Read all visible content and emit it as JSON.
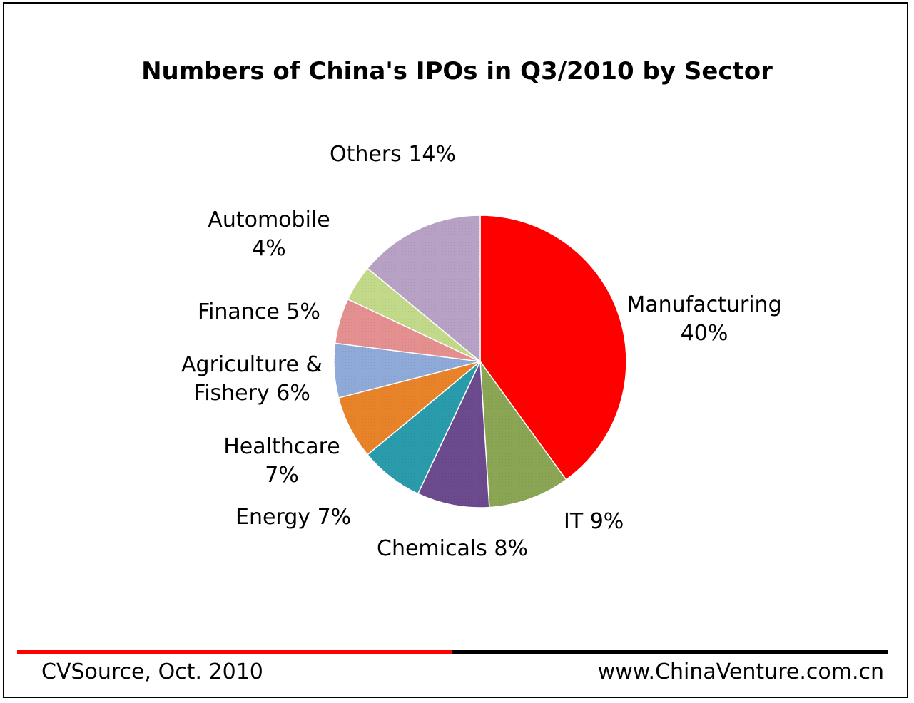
{
  "chart_data": {
    "type": "pie",
    "title": "Numbers of China's IPOs in Q3/2010 by Sector",
    "slices": [
      {
        "name": "Manufacturing",
        "value": 40,
        "label": "40%",
        "color": "#ff0000"
      },
      {
        "name": "IT",
        "value": 9,
        "label": "9%",
        "color": "#8aa553"
      },
      {
        "name": "Chemicals",
        "value": 8,
        "label": "8%",
        "color": "#6b4a8d"
      },
      {
        "name": "Energy",
        "value": 7,
        "label": "7%",
        "color": "#2a9bab"
      },
      {
        "name": "Healthcare",
        "value": 7,
        "label": "7%",
        "color": "#e98329"
      },
      {
        "name": "Agriculture & Fishery",
        "value": 6,
        "label": "6%",
        "color": "#8fa9d9"
      },
      {
        "name": "Finance",
        "value": 5,
        "label": "5%",
        "color": "#e49090"
      },
      {
        "name": "Automobile",
        "value": 4,
        "label": "4%",
        "color": "#c3d98a"
      },
      {
        "name": "Others",
        "value": 14,
        "label": "14%",
        "color": "#b7a2c6"
      }
    ]
  },
  "labels": {
    "manufacturing": {
      "line1": "Manufacturing",
      "line2": "40%"
    },
    "it": "IT 9%",
    "chemicals": "Chemicals 8%",
    "energy": "Energy 7%",
    "healthcare": {
      "line1": "Healthcare",
      "line2": "7%"
    },
    "agriculture": {
      "line1": "Agriculture &",
      "line2": "Fishery 6%"
    },
    "finance": "Finance 5%",
    "automobile": {
      "line1": "Automobile",
      "line2": "4%"
    },
    "others": "Others 14%"
  },
  "footer": {
    "source": "CVSource, Oct. 2010",
    "website": "www.ChinaVenture.com.cn",
    "colors": {
      "left_bar": "#ff0000",
      "right_bar": "#000000"
    }
  }
}
